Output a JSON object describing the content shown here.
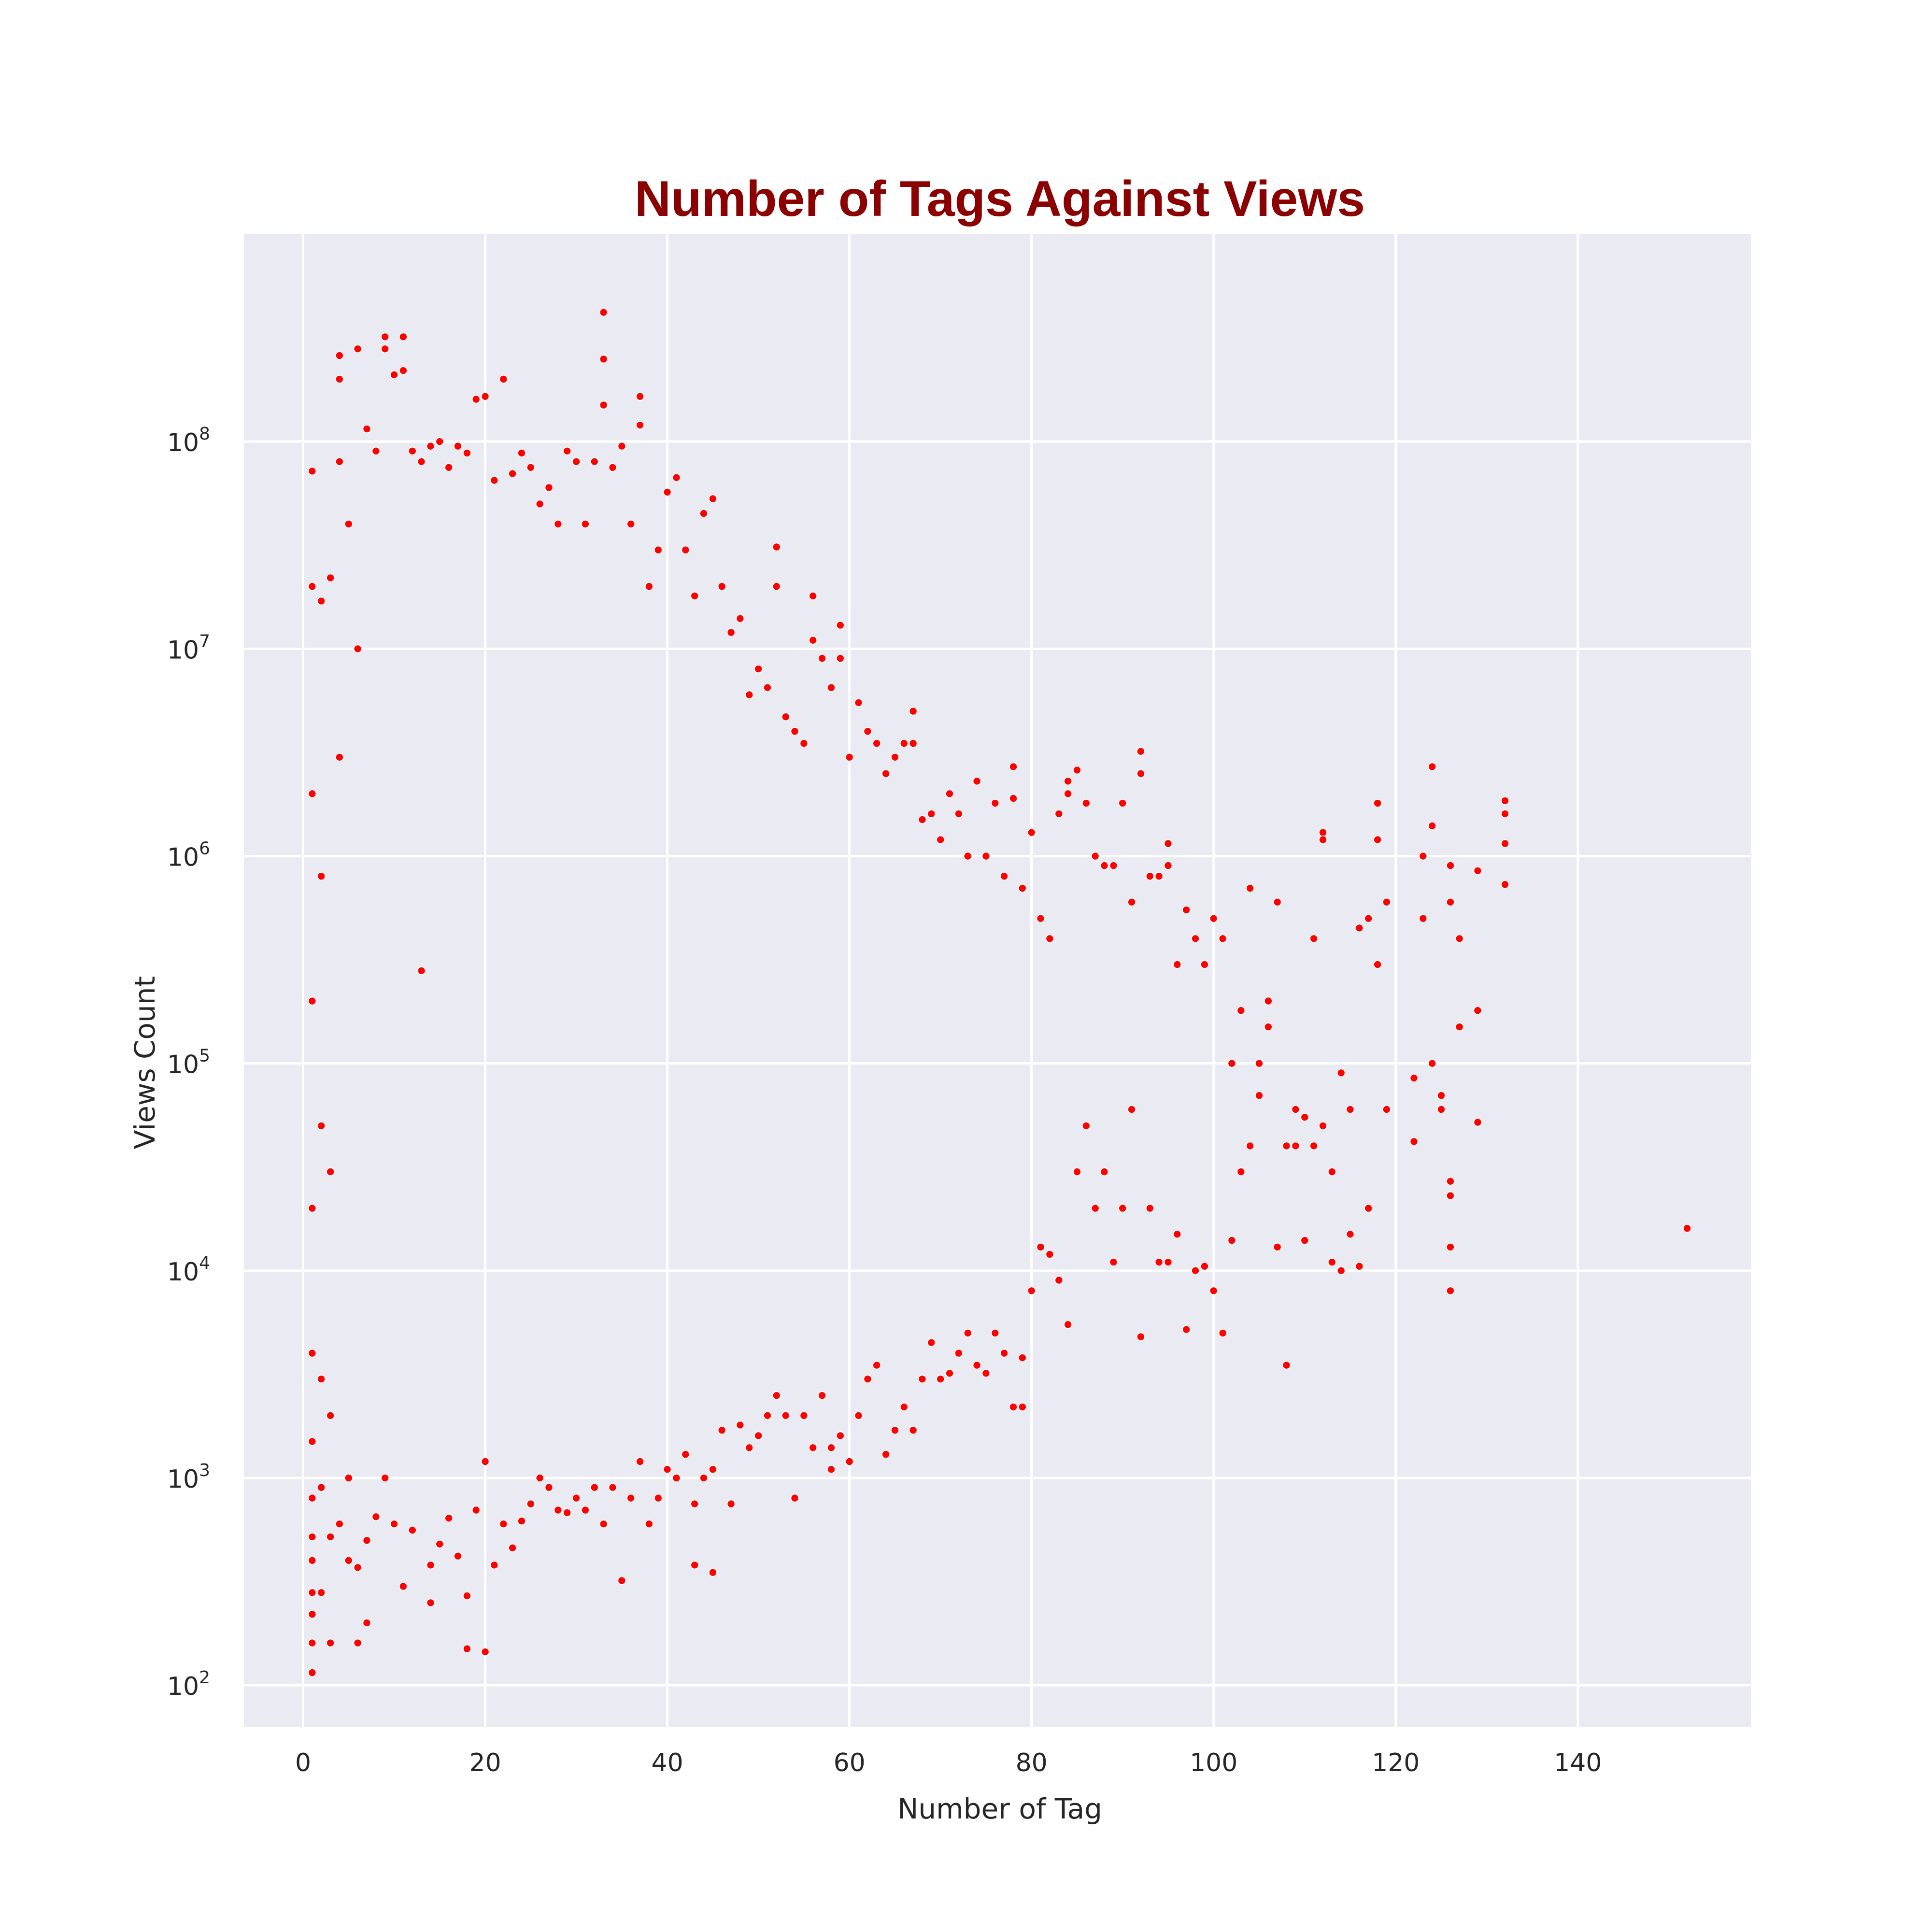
{
  "chart_data": {
    "type": "scatter",
    "title": "Number of Tags Against Views",
    "xlabel": "Number of Tag",
    "ylabel": "Views Count",
    "xlim": [
      -6.5,
      159
    ],
    "ylim_log10": [
      1.8,
      9.0
    ],
    "y_scale": "log",
    "x_ticks": [
      0,
      20,
      40,
      60,
      80,
      100,
      120,
      140
    ],
    "y_ticks": [
      {
        "base": "10",
        "exp": "2",
        "value": 100
      },
      {
        "base": "10",
        "exp": "3",
        "value": 1000
      },
      {
        "base": "10",
        "exp": "4",
        "value": 10000
      },
      {
        "base": "10",
        "exp": "5",
        "value": 100000
      },
      {
        "base": "10",
        "exp": "6",
        "value": 1000000
      },
      {
        "base": "10",
        "exp": "7",
        "value": 10000000
      },
      {
        "base": "10",
        "exp": "8",
        "value": 100000000
      }
    ],
    "grid": true,
    "background": "#eaeaf2",
    "point_color": "#ff0000",
    "title_color": "#8b0000",
    "legend": "none",
    "series": [
      {
        "points": [
          [
            1,
            115
          ],
          [
            1,
            160
          ],
          [
            1,
            220
          ],
          [
            1,
            280
          ],
          [
            1,
            400
          ],
          [
            1,
            520
          ],
          [
            1,
            800
          ],
          [
            1,
            1500
          ],
          [
            1,
            4000
          ],
          [
            1,
            20000
          ],
          [
            1,
            200000
          ],
          [
            1,
            2000000
          ],
          [
            1,
            20000000
          ],
          [
            1,
            72000000
          ],
          [
            2,
            280
          ],
          [
            2,
            900
          ],
          [
            2,
            3000
          ],
          [
            2,
            50000
          ],
          [
            2,
            800000
          ],
          [
            2,
            17000000
          ],
          [
            3,
            160
          ],
          [
            3,
            520
          ],
          [
            3,
            2000
          ],
          [
            3,
            30000
          ],
          [
            3,
            22000000
          ],
          [
            4,
            260000000
          ],
          [
            4,
            200000000
          ],
          [
            4,
            80000000
          ],
          [
            4,
            3000000
          ],
          [
            4,
            600
          ],
          [
            5,
            400
          ],
          [
            5,
            1000
          ],
          [
            5,
            40000000
          ],
          [
            6,
            160
          ],
          [
            6,
            370
          ],
          [
            6,
            280000000
          ],
          [
            6,
            10000000
          ],
          [
            7,
            200
          ],
          [
            7,
            115000000
          ],
          [
            7,
            500
          ],
          [
            8,
            650
          ],
          [
            8,
            90000000
          ],
          [
            9,
            320000000
          ],
          [
            9,
            280000000
          ],
          [
            9,
            1000
          ],
          [
            10,
            600
          ],
          [
            10,
            210000000
          ],
          [
            11,
            300
          ],
          [
            11,
            320000000
          ],
          [
            11,
            220000000
          ],
          [
            12,
            560
          ],
          [
            12,
            90000000
          ],
          [
            13,
            280000
          ],
          [
            13,
            80000000
          ],
          [
            14,
            250
          ],
          [
            14,
            380
          ],
          [
            14,
            95000000
          ],
          [
            15,
            480
          ],
          [
            15,
            100000000
          ],
          [
            16,
            640
          ],
          [
            16,
            75000000
          ],
          [
            17,
            420
          ],
          [
            17,
            95000000
          ],
          [
            18,
            150
          ],
          [
            18,
            270
          ],
          [
            18,
            88000000
          ],
          [
            19,
            700
          ],
          [
            19,
            160000000
          ],
          [
            20,
            145
          ],
          [
            20,
            1200
          ],
          [
            20,
            165000000
          ],
          [
            21,
            380
          ],
          [
            21,
            65000000
          ],
          [
            22,
            200000000
          ],
          [
            22,
            600
          ],
          [
            23,
            460
          ],
          [
            23,
            70000000
          ],
          [
            24,
            620
          ],
          [
            24,
            88000000
          ],
          [
            25,
            750
          ],
          [
            25,
            75000000
          ],
          [
            26,
            1000
          ],
          [
            26,
            50000000
          ],
          [
            27,
            900
          ],
          [
            27,
            60000000
          ],
          [
            28,
            700
          ],
          [
            28,
            40000000
          ],
          [
            29,
            680
          ],
          [
            29,
            90000000
          ],
          [
            30,
            800
          ],
          [
            30,
            80000000
          ],
          [
            31,
            700
          ],
          [
            31,
            40000000
          ],
          [
            32,
            900
          ],
          [
            32,
            80000000
          ],
          [
            33,
            600
          ],
          [
            33,
            420000000
          ],
          [
            33,
            250000000
          ],
          [
            33,
            150000000
          ],
          [
            34,
            900
          ],
          [
            34,
            75000000
          ],
          [
            35,
            320
          ],
          [
            35,
            95000000
          ],
          [
            36,
            800
          ],
          [
            36,
            40000000
          ],
          [
            37,
            1200
          ],
          [
            37,
            165000000
          ],
          [
            37,
            120000000
          ],
          [
            38,
            600
          ],
          [
            38,
            20000000
          ],
          [
            39,
            800
          ],
          [
            39,
            30000000
          ],
          [
            40,
            1100
          ],
          [
            40,
            57000000
          ],
          [
            41,
            1000
          ],
          [
            41,
            67000000
          ],
          [
            42,
            1300
          ],
          [
            42,
            30000000
          ],
          [
            43,
            380
          ],
          [
            43,
            750
          ],
          [
            43,
            18000000
          ],
          [
            44,
            1000
          ],
          [
            44,
            45000000
          ],
          [
            45,
            350
          ],
          [
            45,
            1100
          ],
          [
            45,
            53000000
          ],
          [
            46,
            1700
          ],
          [
            46,
            20000000
          ],
          [
            47,
            750
          ],
          [
            47,
            12000000
          ],
          [
            48,
            1800
          ],
          [
            48,
            14000000
          ],
          [
            49,
            1400
          ],
          [
            49,
            6000000
          ],
          [
            50,
            1600
          ],
          [
            50,
            8000000
          ],
          [
            51,
            2000
          ],
          [
            51,
            6500000
          ],
          [
            52,
            2500
          ],
          [
            52,
            31000000
          ],
          [
            52,
            20000000
          ],
          [
            53,
            2000
          ],
          [
            53,
            4700000
          ],
          [
            54,
            800
          ],
          [
            54,
            4000000
          ],
          [
            55,
            2000
          ],
          [
            55,
            3500000
          ],
          [
            56,
            1400
          ],
          [
            56,
            18000000
          ],
          [
            56,
            11000000
          ],
          [
            57,
            2500
          ],
          [
            57,
            9000000
          ],
          [
            58,
            1100
          ],
          [
            58,
            1400
          ],
          [
            58,
            6500000
          ],
          [
            59,
            1600
          ],
          [
            59,
            13000000
          ],
          [
            59,
            9000000
          ],
          [
            60,
            1200
          ],
          [
            60,
            3000000
          ],
          [
            61,
            2000
          ],
          [
            61,
            5500000
          ],
          [
            62,
            3000
          ],
          [
            62,
            4000000
          ],
          [
            63,
            3500
          ],
          [
            63,
            3500000
          ],
          [
            64,
            1300
          ],
          [
            64,
            2500000
          ],
          [
            65,
            1700
          ],
          [
            65,
            3000000
          ],
          [
            66,
            2200
          ],
          [
            66,
            3500000
          ],
          [
            67,
            1700
          ],
          [
            67,
            5000000
          ],
          [
            67,
            3500000
          ],
          [
            68,
            3000
          ],
          [
            68,
            1500000
          ],
          [
            69,
            4500
          ],
          [
            69,
            1600000
          ],
          [
            70,
            3000
          ],
          [
            70,
            1200000
          ],
          [
            71,
            3200
          ],
          [
            71,
            2000000
          ],
          [
            72,
            4000
          ],
          [
            72,
            1600000
          ],
          [
            73,
            5000
          ],
          [
            73,
            1000000
          ],
          [
            74,
            3500
          ],
          [
            74,
            2300000
          ],
          [
            75,
            3200
          ],
          [
            75,
            1000000
          ],
          [
            76,
            5000
          ],
          [
            76,
            1800000
          ],
          [
            77,
            4000
          ],
          [
            77,
            800000
          ],
          [
            78,
            2200
          ],
          [
            78,
            2700000
          ],
          [
            78,
            1900000
          ],
          [
            79,
            2200
          ],
          [
            79,
            3800
          ],
          [
            79,
            700000
          ],
          [
            80,
            8000
          ],
          [
            80,
            1300000
          ],
          [
            81,
            13000
          ],
          [
            81,
            500000
          ],
          [
            82,
            12000
          ],
          [
            82,
            400000
          ],
          [
            83,
            9000
          ],
          [
            83,
            1600000
          ],
          [
            84,
            5500
          ],
          [
            84,
            2300000
          ],
          [
            84,
            2000000
          ],
          [
            85,
            30000
          ],
          [
            85,
            2600000
          ],
          [
            86,
            50000
          ],
          [
            86,
            1800000
          ],
          [
            87,
            20000
          ],
          [
            87,
            1000000
          ],
          [
            88,
            30000
          ],
          [
            88,
            900000
          ],
          [
            89,
            11000
          ],
          [
            89,
            900000
          ],
          [
            90,
            20000
          ],
          [
            90,
            1800000
          ],
          [
            91,
            60000
          ],
          [
            91,
            600000
          ],
          [
            92,
            4800
          ],
          [
            92,
            3200000
          ],
          [
            92,
            2500000
          ],
          [
            93,
            20000
          ],
          [
            93,
            800000
          ],
          [
            94,
            11000
          ],
          [
            94,
            800000
          ],
          [
            95,
            11000
          ],
          [
            95,
            1150000
          ],
          [
            95,
            900000
          ],
          [
            96,
            15000
          ],
          [
            96,
            300000
          ],
          [
            97,
            5200
          ],
          [
            97,
            550000
          ],
          [
            98,
            10000
          ],
          [
            98,
            400000
          ],
          [
            99,
            10500
          ],
          [
            99,
            300000
          ],
          [
            100,
            8000
          ],
          [
            100,
            500000
          ],
          [
            101,
            5000
          ],
          [
            101,
            400000
          ],
          [
            102,
            14000
          ],
          [
            102,
            100000
          ],
          [
            103,
            30000
          ],
          [
            103,
            180000
          ],
          [
            104,
            40000
          ],
          [
            104,
            700000
          ],
          [
            105,
            70000
          ],
          [
            105,
            100000
          ],
          [
            106,
            150000
          ],
          [
            106,
            200000
          ],
          [
            107,
            13000
          ],
          [
            107,
            600000
          ],
          [
            108,
            3500
          ],
          [
            108,
            40000
          ],
          [
            109,
            60000
          ],
          [
            109,
            40000
          ],
          [
            110,
            14000
          ],
          [
            110,
            55000
          ],
          [
            111,
            40000
          ],
          [
            111,
            400000
          ],
          [
            112,
            1300000
          ],
          [
            112,
            1200000
          ],
          [
            112,
            50000
          ],
          [
            113,
            11000
          ],
          [
            113,
            30000
          ],
          [
            114,
            10000
          ],
          [
            114,
            90000
          ],
          [
            115,
            15000
          ],
          [
            115,
            60000
          ],
          [
            116,
            10500
          ],
          [
            116,
            450000
          ],
          [
            117,
            20000
          ],
          [
            117,
            500000
          ],
          [
            118,
            1800000
          ],
          [
            118,
            1200000
          ],
          [
            118,
            300000
          ],
          [
            119,
            600000
          ],
          [
            119,
            60000
          ],
          [
            122,
            42000
          ],
          [
            122,
            85000
          ],
          [
            123,
            1000000
          ],
          [
            123,
            500000
          ],
          [
            124,
            2700000
          ],
          [
            124,
            1400000
          ],
          [
            124,
            100000
          ],
          [
            125,
            60000
          ],
          [
            125,
            70000
          ],
          [
            126,
            8000
          ],
          [
            126,
            13000
          ],
          [
            126,
            23000
          ],
          [
            126,
            27000
          ],
          [
            126,
            900000
          ],
          [
            126,
            600000
          ],
          [
            127,
            150000
          ],
          [
            127,
            400000
          ],
          [
            129,
            52000
          ],
          [
            129,
            850000
          ],
          [
            129,
            180000
          ],
          [
            132,
            1850000
          ],
          [
            132,
            1600000
          ],
          [
            132,
            1150000
          ],
          [
            132,
            730000
          ],
          [
            152,
            16000
          ]
        ]
      }
    ]
  }
}
